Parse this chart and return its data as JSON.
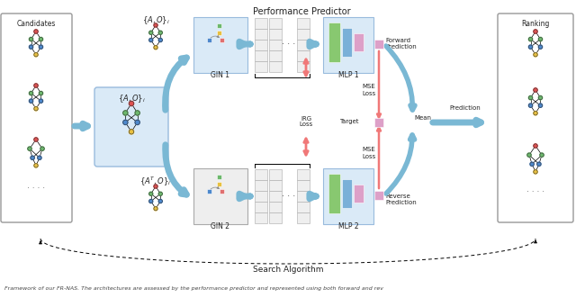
{
  "title": "Performance Predictor",
  "subtitle": "Search Algorithm",
  "caption": "Framework of our FR-NAS. The architectures are assessed by the performance predictor and represented using both forward and rev",
  "bg_color": "#ffffff",
  "light_blue_bg": "#daeaf7",
  "node_colors": {
    "red": "#e05050",
    "green": "#6cb86c",
    "blue": "#4d88cc",
    "yellow": "#e8c040"
  },
  "arrow_blue": "#7ab8d4",
  "arrow_pink": "#f07878",
  "box_border": "#aaaaaa",
  "text_color": "#222222"
}
